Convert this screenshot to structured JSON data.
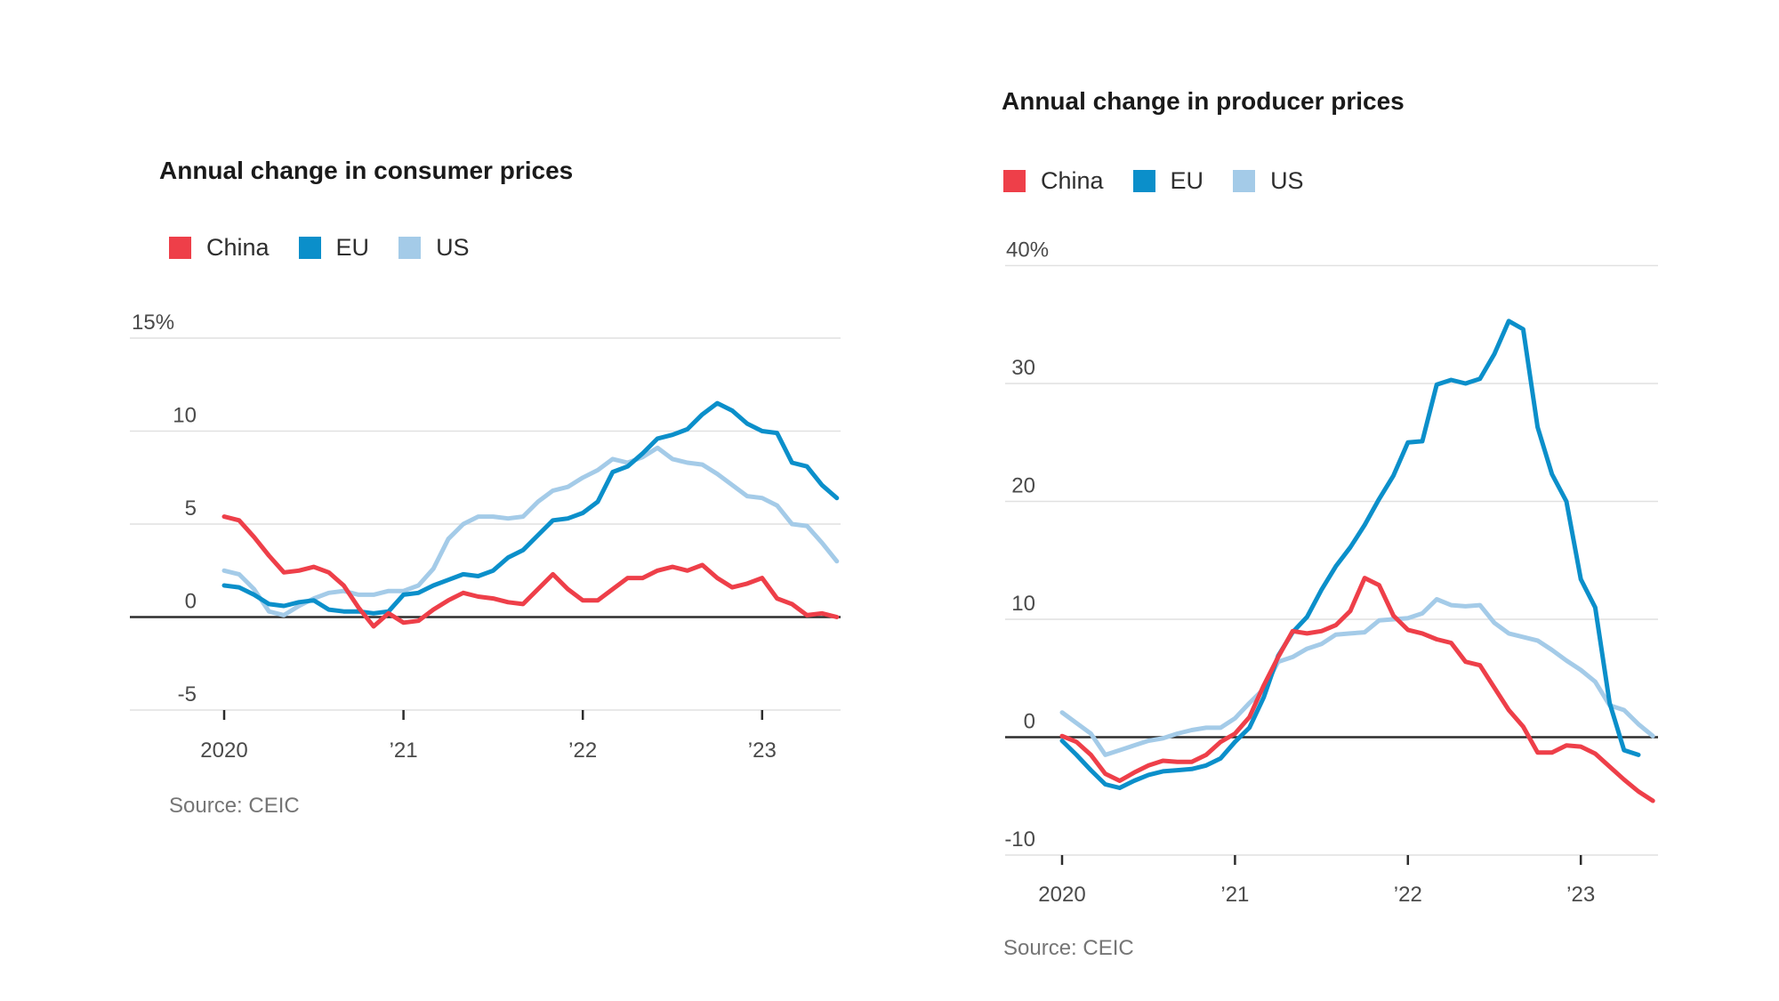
{
  "page": {
    "background": "#ffffff"
  },
  "colors": {
    "china": "#ee3f49",
    "eu": "#0b8fca",
    "us": "#a4cbe8",
    "grid": "#e1e1e1",
    "zero_line": "#2d2d2d",
    "title_text": "#1a1a1a",
    "axis_text": "#4a4a4a",
    "source_text": "#757575"
  },
  "chart_data": [
    {
      "type": "line",
      "title": "Annual change in consumer prices",
      "source": "Source: CEIC",
      "frequency": "monthly",
      "start": "2020-01",
      "ylabel": "",
      "xlabel": "",
      "grid": true,
      "legend_position": "top-left",
      "ylim": [
        -5,
        15
      ],
      "y_ticks": [
        15,
        10,
        5,
        0,
        -5
      ],
      "y_tick_labels": [
        "15%",
        "10",
        "5",
        "0",
        "-5"
      ],
      "x_ticks": [
        {
          "label": "2020",
          "month": 0
        },
        {
          "label": "’21",
          "month": 12
        },
        {
          "label": "’22",
          "month": 24
        },
        {
          "label": "’23",
          "month": 36
        }
      ],
      "series": [
        {
          "name": "China",
          "color": "#ee3f49",
          "values": [
            5.4,
            5.2,
            4.3,
            3.3,
            2.4,
            2.5,
            2.7,
            2.4,
            1.7,
            0.5,
            -0.5,
            0.2,
            -0.3,
            -0.2,
            0.4,
            0.9,
            1.3,
            1.1,
            1.0,
            0.8,
            0.7,
            1.5,
            2.3,
            1.5,
            0.9,
            0.9,
            1.5,
            2.1,
            2.1,
            2.5,
            2.7,
            2.5,
            2.8,
            2.1,
            1.6,
            1.8,
            2.1,
            1.0,
            0.7,
            0.1,
            0.2,
            0.0
          ]
        },
        {
          "name": "EU",
          "color": "#0b8fca",
          "values": [
            1.7,
            1.6,
            1.2,
            0.7,
            0.6,
            0.8,
            0.9,
            0.4,
            0.3,
            0.3,
            0.2,
            0.3,
            1.2,
            1.3,
            1.7,
            2.0,
            2.3,
            2.2,
            2.5,
            3.2,
            3.6,
            4.4,
            5.2,
            5.3,
            5.6,
            6.2,
            7.8,
            8.1,
            8.8,
            9.6,
            9.8,
            10.1,
            10.9,
            11.5,
            11.1,
            10.4,
            10.0,
            9.9,
            8.3,
            8.1,
            7.1,
            6.4
          ]
        },
        {
          "name": "US",
          "color": "#a4cbe8",
          "values": [
            2.5,
            2.3,
            1.5,
            0.3,
            0.1,
            0.6,
            1.0,
            1.3,
            1.4,
            1.2,
            1.2,
            1.4,
            1.4,
            1.7,
            2.6,
            4.2,
            5.0,
            5.4,
            5.4,
            5.3,
            5.4,
            6.2,
            6.8,
            7.0,
            7.5,
            7.9,
            8.5,
            8.3,
            8.6,
            9.1,
            8.5,
            8.3,
            8.2,
            7.7,
            7.1,
            6.5,
            6.4,
            6.0,
            5.0,
            4.9,
            4.0,
            3.0
          ]
        }
      ]
    },
    {
      "type": "line",
      "title": "Annual change in producer prices",
      "source": "Source: CEIC",
      "frequency": "monthly",
      "start": "2020-01",
      "ylabel": "",
      "xlabel": "",
      "grid": true,
      "legend_position": "top-left",
      "ylim": [
        -10,
        40
      ],
      "y_ticks": [
        40,
        30,
        20,
        10,
        0,
        -10
      ],
      "y_tick_labels": [
        "40%",
        "30",
        "20",
        "10",
        "0",
        "-10"
      ],
      "x_ticks": [
        {
          "label": "2020",
          "month": 0
        },
        {
          "label": "’21",
          "month": 12
        },
        {
          "label": "’22",
          "month": 24
        },
        {
          "label": "’23",
          "month": 36
        }
      ],
      "series": [
        {
          "name": "China",
          "color": "#ee3f49",
          "values": [
            0.1,
            -0.4,
            -1.5,
            -3.1,
            -3.7,
            -3.0,
            -2.4,
            -2.0,
            -2.1,
            -2.1,
            -1.5,
            -0.4,
            0.3,
            1.7,
            4.4,
            6.8,
            9.0,
            8.8,
            9.0,
            9.5,
            10.7,
            13.5,
            12.9,
            10.3,
            9.1,
            8.8,
            8.3,
            8.0,
            6.4,
            6.1,
            4.2,
            2.3,
            0.9,
            -1.3,
            -1.3,
            -0.7,
            -0.8,
            -1.4,
            -2.5,
            -3.6,
            -4.6,
            -5.4
          ]
        },
        {
          "name": "EU",
          "color": "#0b8fca",
          "values": [
            -0.3,
            -1.5,
            -2.8,
            -4.0,
            -4.3,
            -3.7,
            -3.2,
            -2.9,
            -2.8,
            -2.7,
            -2.4,
            -1.8,
            -0.4,
            0.8,
            3.4,
            6.9,
            8.9,
            10.2,
            12.5,
            14.5,
            16.1,
            18.0,
            20.2,
            22.2,
            25.0,
            25.1,
            29.9,
            30.3,
            30.0,
            30.4,
            32.5,
            35.3,
            34.6,
            26.3,
            22.3,
            20.0,
            13.4,
            11.0,
            2.9,
            -1.1,
            -1.5
          ]
        },
        {
          "name": "US",
          "color": "#a4cbe8",
          "values": [
            2.1,
            1.2,
            0.3,
            -1.5,
            -1.1,
            -0.7,
            -0.3,
            -0.1,
            0.3,
            0.6,
            0.8,
            0.8,
            1.6,
            2.9,
            4.1,
            6.4,
            6.8,
            7.5,
            7.9,
            8.7,
            8.8,
            8.9,
            9.9,
            10.0,
            10.1,
            10.5,
            11.7,
            11.2,
            11.1,
            11.2,
            9.7,
            8.8,
            8.5,
            8.2,
            7.4,
            6.5,
            5.7,
            4.7,
            2.7,
            2.3,
            1.1,
            0.1
          ]
        }
      ]
    }
  ]
}
